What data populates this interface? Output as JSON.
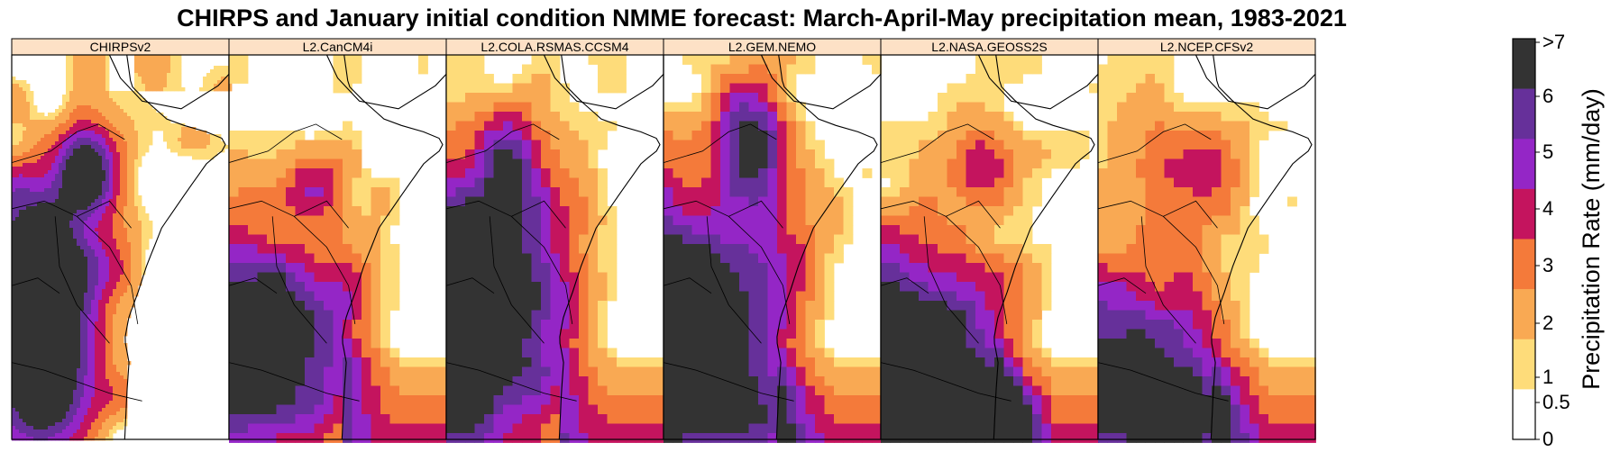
{
  "title": "CHIRPS and January initial condition NMME forecast:  March-April-May precipitation mean, 1983-2021",
  "panels": [
    {
      "label": "CHIRPSv2",
      "grid": "fine"
    },
    {
      "label": "L2.CanCM4i",
      "grid": "coarse"
    },
    {
      "label": "L2.COLA.RSMAS.CCSM4",
      "grid": "coarse"
    },
    {
      "label": "L2.GEM.NEMO",
      "grid": "coarse"
    },
    {
      "label": "L2.NASA.GEOSS2S",
      "grid": "coarse"
    },
    {
      "label": "L2.NCEP.CFSv2",
      "grid": "coarse"
    }
  ],
  "colors": {
    "strip_fill": "#fde1c6",
    "bins": [
      "#ffffff",
      "#fedc7a",
      "#f9a953",
      "#f47a3a",
      "#c4145e",
      "#9426c6",
      "#66309a",
      "#333333"
    ]
  },
  "colorbar": {
    "title": "Precipitation Rate (mm/day)",
    "ticks": [
      "0",
      "0.5",
      "1",
      "2",
      "3",
      "4",
      "5",
      "6",
      ">7"
    ]
  }
}
